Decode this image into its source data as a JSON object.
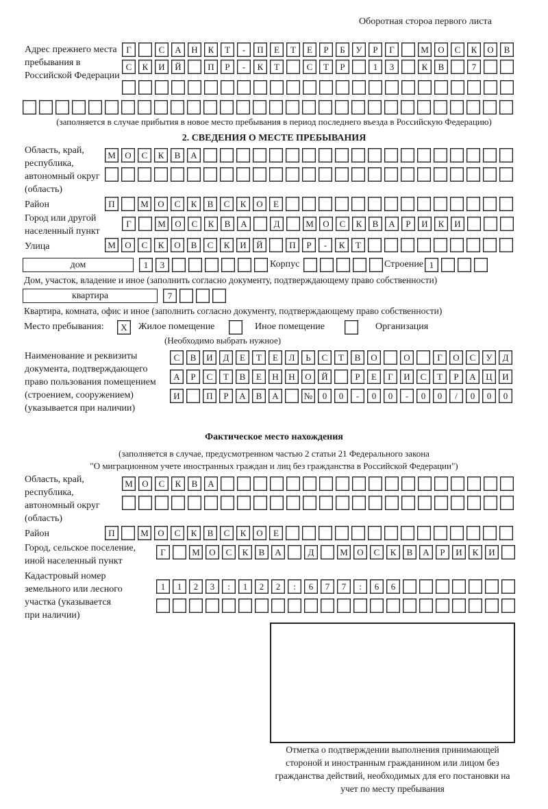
{
  "header": {
    "title": "Оборотная стороа первого листа"
  },
  "prev_address": {
    "label": "Адрес прежнего места пребывания в Российской Федерации",
    "rows": [
      [
        "Г",
        "",
        "С",
        "А",
        "Н",
        "К",
        "Т",
        "-",
        "П",
        "Е",
        "Т",
        "Е",
        "Р",
        "Б",
        "У",
        "Р",
        "Г",
        "",
        "М",
        "О",
        "С",
        "К",
        "О",
        "В"
      ],
      [
        "С",
        "К",
        "И",
        "Й",
        "",
        "П",
        "Р",
        "-",
        "К",
        "Т",
        "",
        "С",
        "Т",
        "Р",
        "",
        "1",
        "3",
        "",
        "К",
        "В",
        "",
        "7",
        "",
        ""
      ],
      [
        "",
        "",
        "",
        "",
        "",
        "",
        "",
        "",
        "",
        "",
        "",
        "",
        "",
        "",
        "",
        "",
        "",
        "",
        "",
        "",
        "",
        "",
        "",
        ""
      ],
      [
        "",
        "",
        "",
        "",
        "",
        "",
        "",
        "",
        "",
        "",
        "",
        "",
        "",
        "",
        "",
        "",
        "",
        "",
        "",
        "",
        "",
        "",
        "",
        "",
        "",
        "",
        "",
        "",
        "",
        ""
      ]
    ],
    "note": "(заполняется в случае прибытия в новое место пребывания в период последнего въезда в Российскую Федерацию)"
  },
  "section2": {
    "title": "2. СВЕДЕНИЯ О МЕСТЕ ПРЕБЫВАНИЯ",
    "region_label": "Область, край, республика, автономный округ (область)",
    "region_rows": [
      [
        "М",
        "О",
        "С",
        "К",
        "В",
        "А",
        "",
        "",
        "",
        "",
        "",
        "",
        "",
        "",
        "",
        "",
        "",
        "",
        "",
        "",
        "",
        "",
        "",
        "",
        ""
      ],
      [
        "",
        "",
        "",
        "",
        "",
        "",
        "",
        "",
        "",
        "",
        "",
        "",
        "",
        "",
        "",
        "",
        "",
        "",
        "",
        "",
        "",
        "",
        "",
        "",
        ""
      ]
    ],
    "district_label": "Район",
    "district": [
      "П",
      "",
      "М",
      "О",
      "С",
      "К",
      "В",
      "С",
      "К",
      "О",
      "Е",
      "",
      "",
      "",
      "",
      "",
      "",
      "",
      "",
      "",
      "",
      "",
      "",
      "",
      ""
    ],
    "city_label": "Город или другой населенный пункт",
    "city": [
      "Г",
      "",
      "М",
      "О",
      "С",
      "К",
      "В",
      "А",
      "",
      "Д",
      "",
      "М",
      "О",
      "С",
      "К",
      "В",
      "А",
      "Р",
      "И",
      "К",
      "И",
      "",
      "",
      ""
    ],
    "street_label": "Улица",
    "street": [
      "М",
      "О",
      "С",
      "К",
      "О",
      "В",
      "С",
      "К",
      "И",
      "Й",
      "",
      "П",
      "Р",
      "-",
      "К",
      "Т",
      "",
      "",
      "",
      "",
      "",
      "",
      "",
      "",
      ""
    ],
    "house_type": "дом",
    "house": [
      "1",
      "3",
      "",
      "",
      "",
      "",
      "",
      ""
    ],
    "korpus_label": "Корпус",
    "korpus": [
      "",
      "",
      "",
      "",
      ""
    ],
    "building_label": "Строение",
    "building": [
      "1",
      "",
      "",
      ""
    ],
    "house_note": "Дом, участок, владение и иное (заполнить согласно документу, подтверждающему право собственности)",
    "flat_type": "квартира",
    "flat": [
      "7",
      "",
      "",
      ""
    ],
    "flat_note": "Квартира, комната, офис и иное (заполнить согласно документу, подтверждающему право собственности)",
    "place_label": "Место пребывания:",
    "place_options": [
      {
        "mark": "X",
        "label": "Жилое помещение",
        "checked": true
      },
      {
        "mark": "",
        "label": "Иное помещение",
        "checked": false
      },
      {
        "mark": "",
        "label": "Организация",
        "checked": false
      }
    ],
    "place_note": "(Необходимо выбрать нужное)",
    "doc_label": "Наименование и реквизиты документа, подтверждающего право пользования помещением (строением, сооружением) (указывается при наличии)",
    "doc_rows": [
      [
        "С",
        "В",
        "И",
        "Д",
        "Е",
        "Т",
        "Е",
        "Л",
        "Ь",
        "С",
        "Т",
        "В",
        "О",
        "",
        "О",
        "",
        "Г",
        "О",
        "С",
        "У",
        "Д"
      ],
      [
        "А",
        "Р",
        "С",
        "Т",
        "В",
        "Е",
        "Н",
        "Н",
        "О",
        "Й",
        "",
        "Р",
        "Е",
        "Г",
        "И",
        "С",
        "Т",
        "Р",
        "А",
        "Ц",
        "И"
      ],
      [
        "И",
        "",
        "П",
        "Р",
        "А",
        "В",
        "А",
        "",
        "№",
        "0",
        "0",
        "-",
        "0",
        "0",
        "-",
        "0",
        "0",
        "/",
        "0",
        "0",
        "0"
      ]
    ]
  },
  "actual": {
    "title": "Фактическое место нахождения",
    "note1": "(заполняется в случае, предусмотренном частью 2 статьи 21 Федерального закона",
    "note2": "\"О миграционном учете иностранных граждан и лиц без гражданства в Российской Федерации\")",
    "region_label": "Область, край, республика, автономный округ (область)",
    "region_rows": [
      [
        "М",
        "О",
        "С",
        "К",
        "В",
        "А",
        "",
        "",
        "",
        "",
        "",
        "",
        "",
        "",
        "",
        "",
        "",
        "",
        "",
        "",
        "",
        "",
        "",
        ""
      ],
      [
        "",
        "",
        "",
        "",
        "",
        "",
        "",
        "",
        "",
        "",
        "",
        "",
        "",
        "",
        "",
        "",
        "",
        "",
        "",
        "",
        "",
        "",
        "",
        ""
      ]
    ],
    "district_label": "Район",
    "district": [
      "П",
      "",
      "М",
      "О",
      "С",
      "К",
      "В",
      "С",
      "К",
      "О",
      "Е",
      "",
      "",
      "",
      "",
      "",
      "",
      "",
      "",
      "",
      "",
      "",
      "",
      "",
      ""
    ],
    "city_label": "Город, сельское поселение, иной населенный пункт",
    "city": [
      "Г",
      "",
      "М",
      "О",
      "С",
      "К",
      "В",
      "А",
      "",
      "Д",
      "",
      "М",
      "О",
      "С",
      "К",
      "В",
      "А",
      "Р",
      "И",
      "К",
      "И",
      ""
    ],
    "cadastre_label": "Кадастровый номер земельного или лесного участка (указывается при наличии)",
    "cadastre_rows": [
      [
        "1",
        "1",
        "2",
        "3",
        ":",
        "1",
        "2",
        "2",
        ":",
        "6",
        "7",
        "7",
        ":",
        "6",
        "6",
        "",
        "",
        "",
        "",
        "",
        "",
        ""
      ],
      [
        "",
        "",
        "",
        "",
        "",
        "",
        "",
        "",
        "",
        "",
        "",
        "",
        "",
        "",
        "",
        "",
        "",
        "",
        "",
        "",
        "",
        ""
      ]
    ]
  },
  "stamp": {
    "caption": "Отметка о подтверждении выполнения принимающей стороной и иностранным гражданином или лицом без гражданства действий, необходимых для его постановки на учет по месту пребывания"
  }
}
